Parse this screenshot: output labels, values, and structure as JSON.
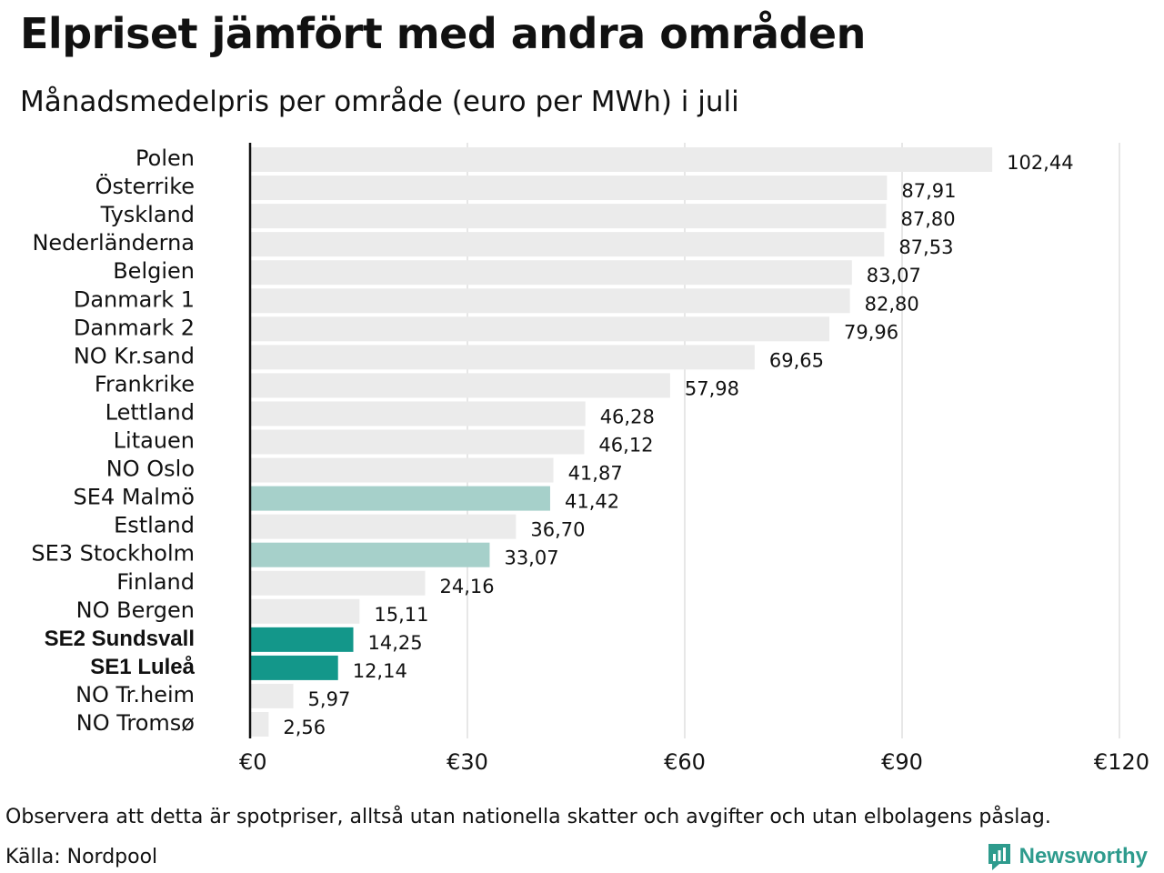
{
  "header": {
    "title": "Elpriset jämfört med andra områden",
    "subtitle": "Månadsmedelpris per område (euro per MWh) i juli"
  },
  "footer": {
    "note": "Observera att detta är spotpriser, alltså utan nationella skatter och avgifter och utan elbolagens påslag.",
    "source": "Källa: Nordpool",
    "brand": "Newsworthy",
    "brand_icon": "newsworthy-logo-icon"
  },
  "colors": {
    "bar_default": "#ebebeb",
    "bar_se_south": "#a6d0ca",
    "bar_se_north": "#13978a",
    "axis_line": "#111111",
    "grid": "#cfcfcf",
    "brand": "#2e9b8d"
  },
  "chart_data": {
    "type": "bar",
    "orientation": "horizontal",
    "xlim": [
      0,
      120
    ],
    "x_ticks": [
      0,
      30,
      60,
      90,
      120
    ],
    "x_tick_labels": [
      "€0",
      "€30",
      "€60",
      "€90",
      "€120"
    ],
    "grid": true,
    "categories": [
      "Polen",
      "Österrike",
      "Tyskland",
      "Nederländerna",
      "Belgien",
      "Danmark  1",
      "Danmark  2",
      "NO Kr.sand",
      "Frankrike",
      "Lettland",
      "Litauen",
      "NO Oslo",
      "SE4  Malmö",
      "Estland",
      "SE3  Stockholm",
      "Finland",
      "NO Bergen",
      "SE2 Sundsvall",
      "SE1 Luleå",
      "NO Tr.heim",
      "NO Tromsø"
    ],
    "values": [
      102.44,
      87.91,
      87.8,
      87.53,
      83.07,
      82.8,
      79.96,
      69.65,
      57.98,
      46.28,
      46.12,
      41.87,
      41.42,
      36.7,
      33.07,
      24.16,
      15.11,
      14.25,
      12.14,
      5.97,
      2.56
    ],
    "value_labels": [
      "102,44",
      "87,91",
      "87,80",
      "87,53",
      "83,07",
      "82,80",
      "79,96",
      "69,65",
      "57,98",
      "46,28",
      "46,12",
      "41,87",
      "41,42",
      "36,70",
      "33,07",
      "24,16",
      "15,11",
      "14,25",
      "12,14",
      "5,97",
      "2,56"
    ],
    "highlight": [
      "default",
      "default",
      "default",
      "default",
      "default",
      "default",
      "default",
      "default",
      "default",
      "default",
      "default",
      "default",
      "se_south",
      "default",
      "se_south",
      "default",
      "default",
      "se_north",
      "se_north",
      "default",
      "default"
    ],
    "bold_labels": [
      false,
      false,
      false,
      false,
      false,
      false,
      false,
      false,
      false,
      false,
      false,
      false,
      false,
      false,
      false,
      false,
      false,
      true,
      true,
      false,
      false
    ]
  }
}
